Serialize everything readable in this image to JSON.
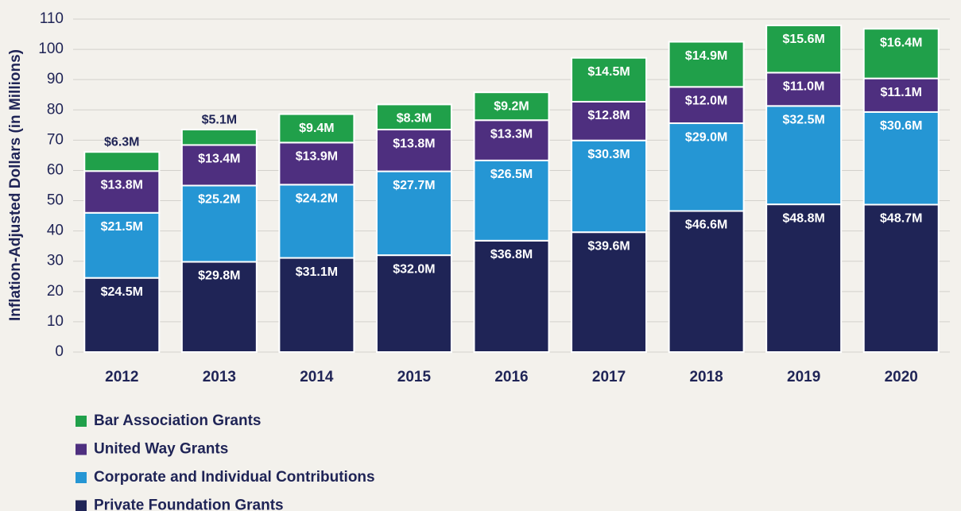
{
  "chart_data": {
    "type": "stacked_bar",
    "y_axis_label": "Inflation-Adjusted Dollars (in Millions)",
    "categories": [
      "2012",
      "2013",
      "2014",
      "2015",
      "2016",
      "2017",
      "2018",
      "2019",
      "2020"
    ],
    "series": [
      {
        "name": "Private Foundation Grants",
        "color": "#1f2456",
        "values": [
          24.5,
          29.8,
          31.1,
          32.0,
          36.8,
          39.6,
          46.6,
          48.8,
          48.7
        ],
        "value_labels": [
          "$24.5M",
          "$29.8M",
          "$31.1M",
          "$32.0M",
          "$36.8M",
          "$39.6M",
          "$46.6M",
          "$48.8M",
          "$48.7M"
        ]
      },
      {
        "name": "Corporate and Individual Contributions",
        "color": "#2596d4",
        "values": [
          21.5,
          25.2,
          24.2,
          27.7,
          26.5,
          30.3,
          29.0,
          32.5,
          30.6
        ],
        "value_labels": [
          "$21.5M",
          "$25.2M",
          "$24.2M",
          "$27.7M",
          "$26.5M",
          "$30.3M",
          "$29.0M",
          "$32.5M",
          "$30.6M"
        ]
      },
      {
        "name": "United Way Grants",
        "color": "#4e2f7f",
        "values": [
          13.8,
          13.4,
          13.9,
          13.8,
          13.3,
          12.8,
          12.0,
          11.0,
          11.1
        ],
        "value_labels": [
          "$13.8M",
          "$13.4M",
          "$13.9M",
          "$13.8M",
          "$13.3M",
          "$12.8M",
          "$12.0M",
          "$11.0M",
          "$11.1M"
        ]
      },
      {
        "name": "Bar Association Grants",
        "color": "#20a04a",
        "values": [
          6.3,
          5.1,
          9.4,
          8.3,
          9.2,
          14.5,
          14.9,
          15.6,
          16.4
        ],
        "value_labels": [
          "$6.3M",
          "$5.1M",
          "$9.4M",
          "$8.3M",
          "$9.2M",
          "$14.5M",
          "$14.9M",
          "$15.6M",
          "$16.4M"
        ]
      }
    ],
    "ylim": [
      0,
      110
    ],
    "yticks": [
      0,
      10,
      20,
      30,
      40,
      50,
      60,
      70,
      80,
      90,
      100,
      110
    ],
    "grid": true
  }
}
